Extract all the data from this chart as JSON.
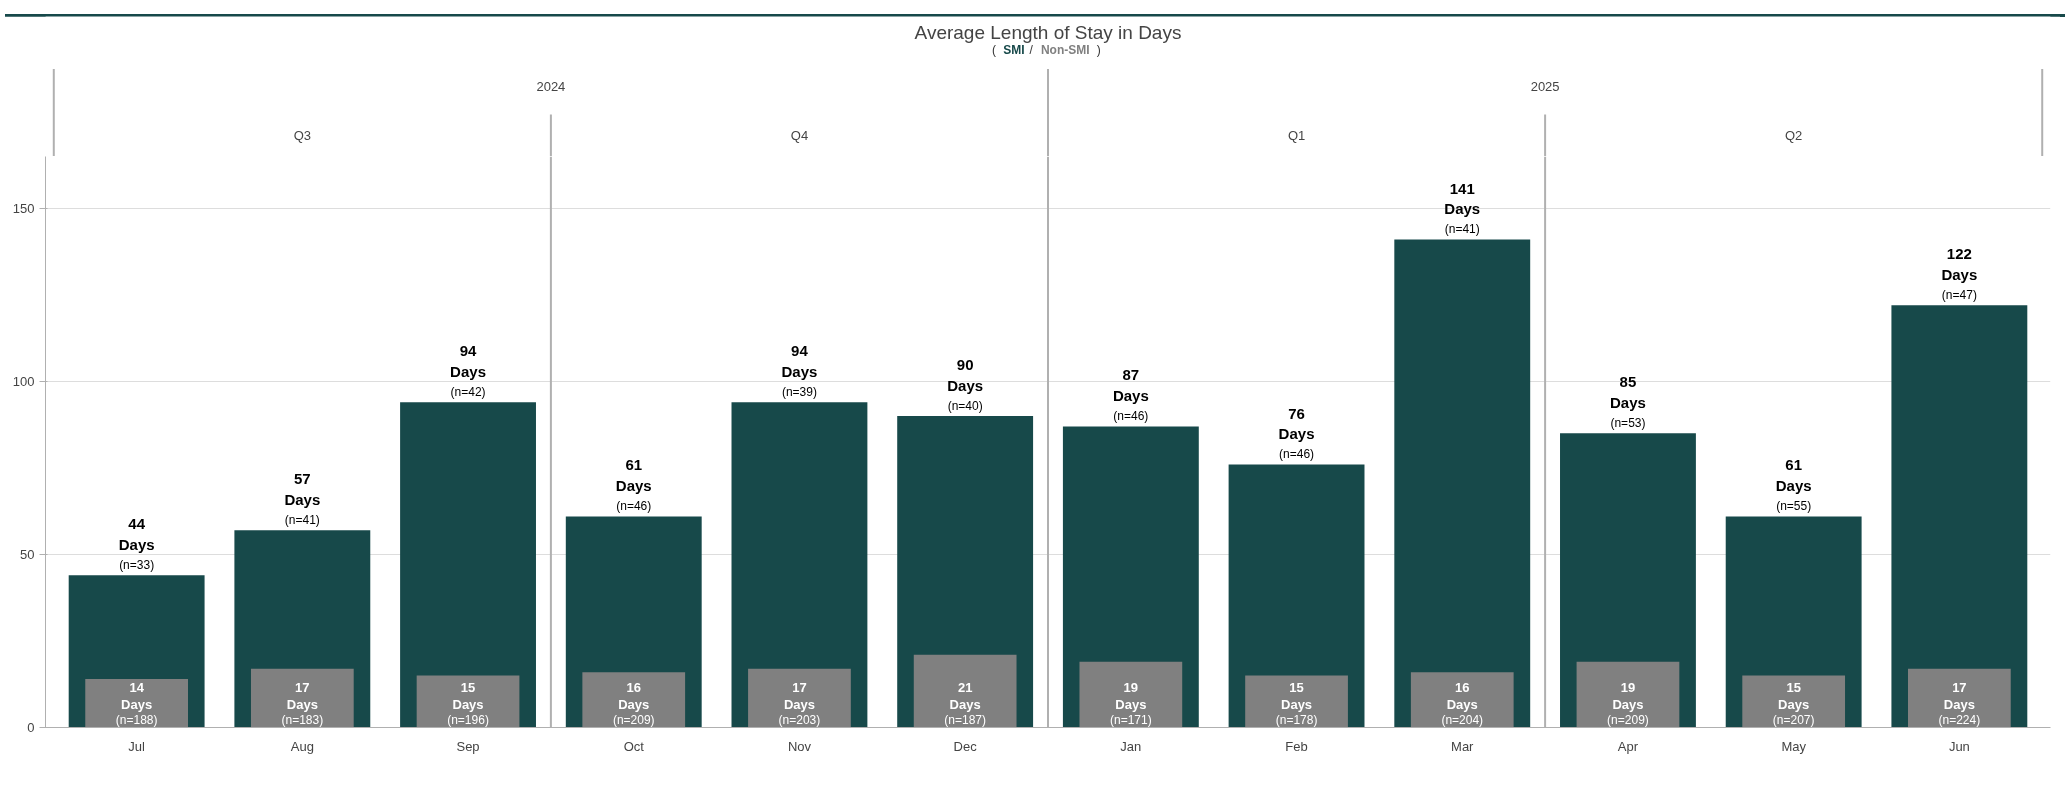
{
  "chart_data": {
    "type": "bar",
    "title": "Average Length of Stay in Days",
    "categories": [
      "Jul",
      "Aug",
      "Sep",
      "Oct",
      "Nov",
      "Dec",
      "Jan",
      "Feb",
      "Mar",
      "Apr",
      "May",
      "Jun"
    ],
    "annotations": [
      "(",
      "/",
      ")",
      "2024",
      "2025",
      "Q3",
      "Q4",
      "Q1",
      "Q2"
    ],
    "series": [
      {
        "name": "SMI",
        "color": "#17494a",
        "values": [
          44,
          57,
          94,
          61,
          94,
          90,
          87,
          76,
          141,
          85,
          61,
          122
        ],
        "value_labels": [
          "44\nDays\n(n=33)",
          "57\nDays\n(n=41)",
          "94\nDays\n(n=42)",
          "61\nDays\n(n=46)",
          "94\nDays\n(n=39)",
          "90\nDays\n(n=40)",
          "87\nDays\n(n=46)",
          "76\nDays\n(n=46)",
          "141\nDays\n(n=41)",
          "85\nDays\n(n=53)",
          "61\nDays\n(n=55)",
          "122\nDays\n(n=47)"
        ]
      },
      {
        "name": "Non-SMI",
        "color": "#808080",
        "values": [
          14,
          17,
          15,
          16,
          17,
          21,
          19,
          15,
          16,
          19,
          15,
          17
        ],
        "value_labels": [
          "14\nDays\n(n=188)",
          "17\nDays\n(n=183)",
          "15\nDays\n(n=196)",
          "16\nDays\n(n=209)",
          "17\nDays\n(n=203)",
          "21\nDays\n(n=187)",
          "19\nDays\n(n=171)",
          "15\nDays\n(n=178)",
          "16\nDays\n(n=204)",
          "19\nDays\n(n=209)",
          "15\nDays\n(n=207)",
          "17\nDays\n(n=224)"
        ]
      }
    ],
    "ylim": [
      0,
      165
    ],
    "yticks": [
      0,
      50,
      100,
      150
    ],
    "grid": "y",
    "legend": "top"
  }
}
